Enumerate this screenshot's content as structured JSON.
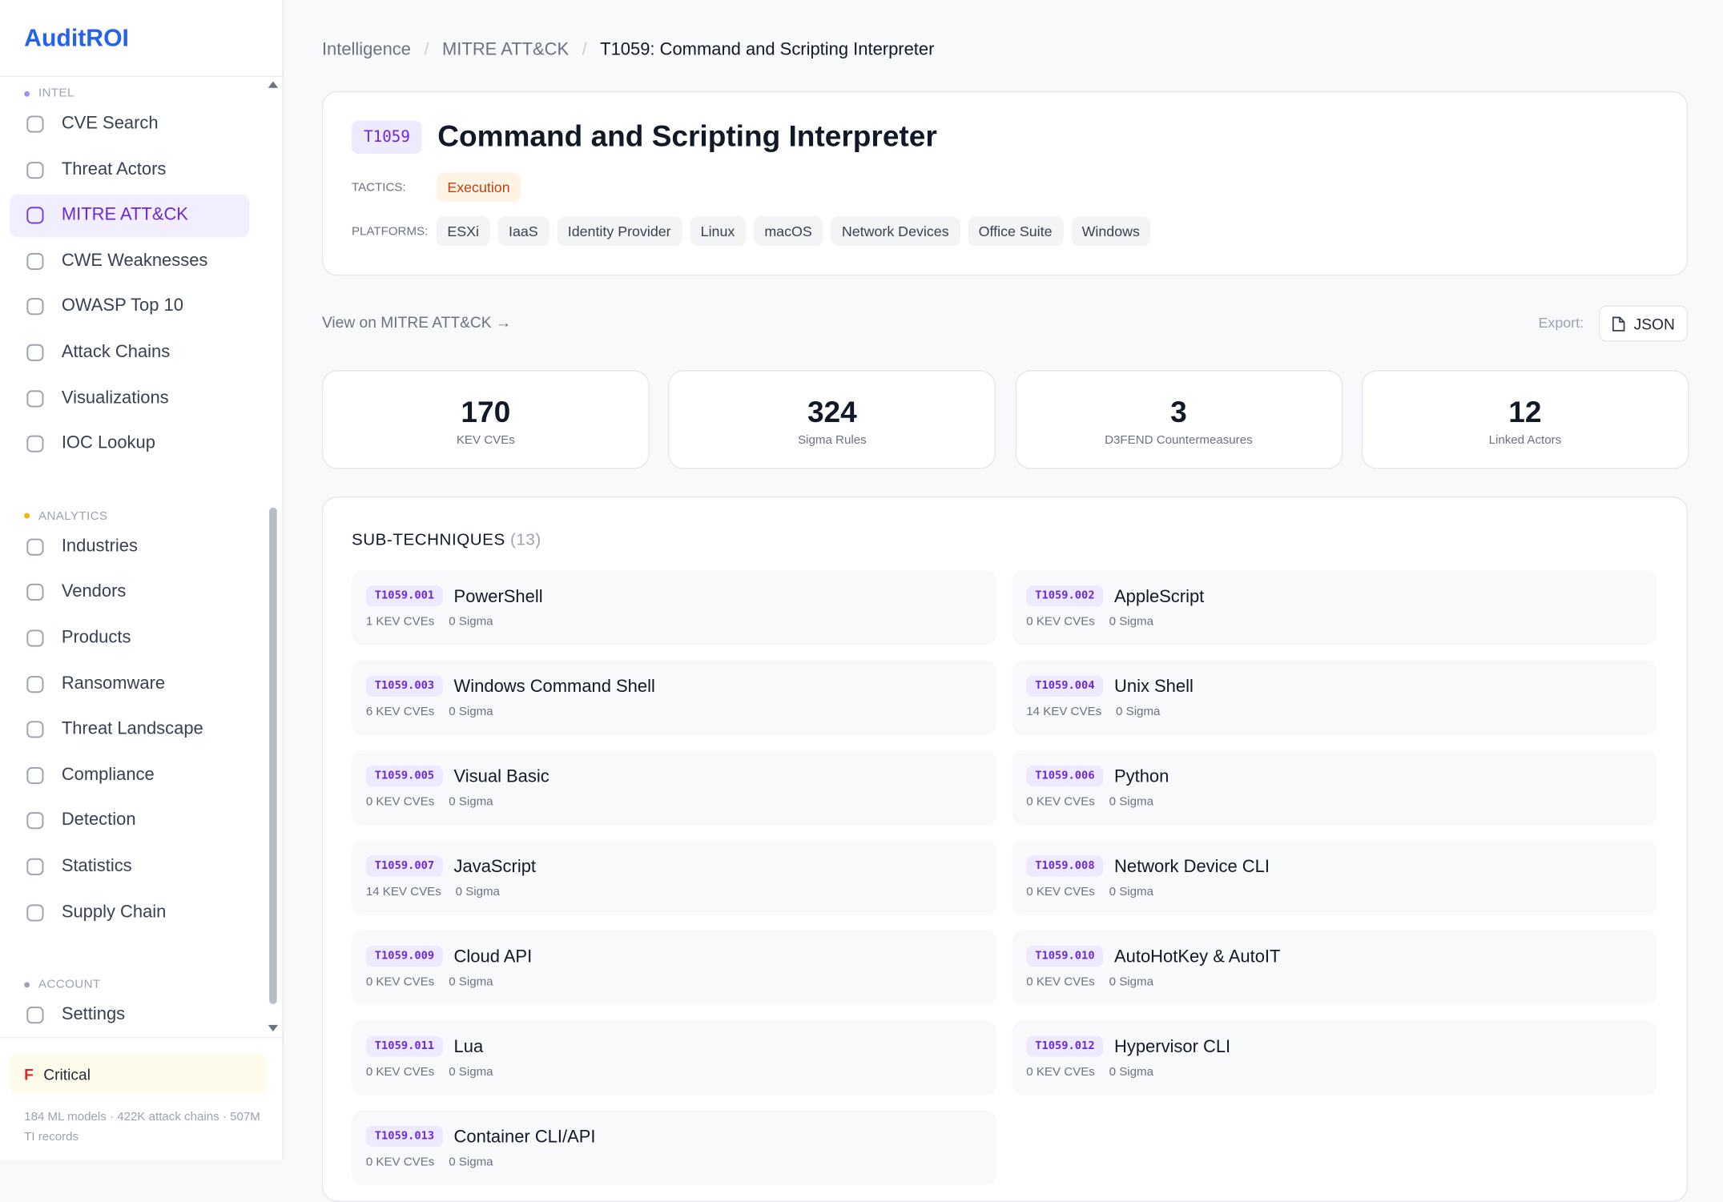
{
  "sidebar": {
    "brand": "AuditROI",
    "sections": [
      {
        "title": "INTEL",
        "color": "#a78bfa",
        "items": [
          "CVE Search",
          "Threat Actors",
          "MITRE ATT&CK",
          "CWE Weaknesses",
          "OWASP Top 10",
          "Attack Chains",
          "Visualizations",
          "IOC Lookup"
        ]
      },
      {
        "title": "ANALYTICS",
        "color": "#f5b400",
        "items": [
          "Industries",
          "Vendors",
          "Products",
          "Ransomware",
          "Threat Landscape",
          "Compliance",
          "Detection",
          "Statistics",
          "Supply Chain"
        ]
      },
      {
        "title": "ACCOUNT",
        "color": "#9ca3af",
        "items": [
          "Settings"
        ]
      }
    ],
    "active": "MITRE ATT&CK",
    "grade": "F",
    "grade_label": "Critical",
    "footer": "184 ML models · 422K attack chains · 507M TI records"
  },
  "breadcrumb": [
    "Intelligence",
    "MITRE ATT&CK",
    "T1059: Command and Scripting Interpreter"
  ],
  "header": {
    "id": "T1059",
    "title": "Command and Scripting Interpreter",
    "tactics_label": "TACTICS:",
    "tactics": [
      "Execution"
    ],
    "platforms_label": "PLATFORMS:",
    "platforms": [
      "ESXi",
      "IaaS",
      "Identity Provider",
      "Linux",
      "macOS",
      "Network Devices",
      "Office Suite",
      "Windows"
    ]
  },
  "toolbar": {
    "link": "View on MITRE ATT&CK →",
    "export_label": "Export:",
    "export_button": "JSON"
  },
  "stats": [
    {
      "value": 170,
      "label": "KEV CVEs"
    },
    {
      "value": 324,
      "label": "Sigma Rules"
    },
    {
      "value": 3,
      "label": "D3FEND Countermeasures"
    },
    {
      "value": 12,
      "label": "Linked Actors"
    }
  ],
  "subtechniques": {
    "title": "SUB-TECHNIQUES",
    "count": "(13)",
    "items": [
      {
        "id": "T1059.001",
        "name": "PowerShell",
        "kev": "1 KEV CVEs",
        "sigma": "0 Sigma"
      },
      {
        "id": "T1059.002",
        "name": "AppleScript",
        "kev": "0 KEV CVEs",
        "sigma": "0 Sigma"
      },
      {
        "id": "T1059.003",
        "name": "Windows Command Shell",
        "kev": "6 KEV CVEs",
        "sigma": "0 Sigma"
      },
      {
        "id": "T1059.004",
        "name": "Unix Shell",
        "kev": "14 KEV CVEs",
        "sigma": "0 Sigma"
      },
      {
        "id": "T1059.005",
        "name": "Visual Basic",
        "kev": "0 KEV CVEs",
        "sigma": "0 Sigma"
      },
      {
        "id": "T1059.006",
        "name": "Python",
        "kev": "0 KEV CVEs",
        "sigma": "0 Sigma"
      },
      {
        "id": "T1059.007",
        "name": "JavaScript",
        "kev": "14 KEV CVEs",
        "sigma": "0 Sigma"
      },
      {
        "id": "T1059.008",
        "name": "Network Device CLI",
        "kev": "0 KEV CVEs",
        "sigma": "0 Sigma"
      },
      {
        "id": "T1059.009",
        "name": "Cloud API",
        "kev": "0 KEV CVEs",
        "sigma": "0 Sigma"
      },
      {
        "id": "T1059.010",
        "name": "AutoHotKey & AutoIT",
        "kev": "0 KEV CVEs",
        "sigma": "0 Sigma"
      },
      {
        "id": "T1059.011",
        "name": "Lua",
        "kev": "0 KEV CVEs",
        "sigma": "0 Sigma"
      },
      {
        "id": "T1059.012",
        "name": "Hypervisor CLI",
        "kev": "0 KEV CVEs",
        "sigma": "0 Sigma"
      },
      {
        "id": "T1059.013",
        "name": "Container CLI/API",
        "kev": "0 KEV CVEs",
        "sigma": "0 Sigma"
      }
    ]
  }
}
